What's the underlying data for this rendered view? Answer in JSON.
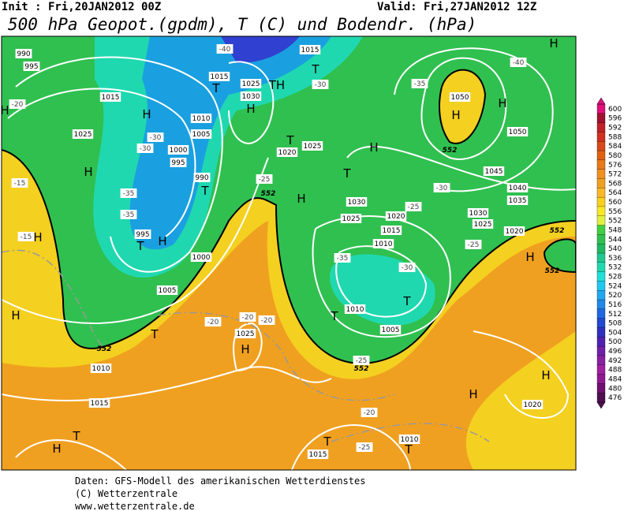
{
  "header": {
    "init": "Init : Fri,20JAN2012 00Z",
    "valid": "Valid: Fri,27JAN2012 12Z",
    "title": "500 hPa Geopot.(gpdm), T (C) und Bodendr. (hPa)"
  },
  "map": {
    "pressure_labels": [
      "990",
      "995",
      "1015",
      "1025",
      "1000",
      "995",
      "990",
      "995",
      "1000",
      "1005",
      "1050",
      "1050",
      "1045",
      "1040",
      "1035",
      "1030",
      "1025",
      "1020",
      "1015",
      "1010",
      "1010",
      "1005",
      "1025",
      "1010",
      "1015",
      "1015",
      "1010",
      "1020",
      "1030",
      "1025",
      "1010",
      "1005",
      "1020",
      "1025",
      "1015",
      "1030",
      "1025",
      "1020",
      "1015"
    ],
    "temperature_labels": [
      "-40",
      "-35",
      "-30",
      "-25",
      "-20",
      "-35",
      "-30",
      "-25",
      "-20",
      "-25",
      "-30",
      "-35",
      "-40",
      "-20",
      "-15",
      "-15",
      "-35",
      "-30",
      "-25",
      "-30",
      "-20",
      "-20",
      "-25"
    ],
    "contour_labels": [
      "552",
      "552",
      "552",
      "552",
      "552",
      "552"
    ],
    "centers": [
      "T",
      "H",
      "T",
      "H",
      "T",
      "H",
      "H",
      "H",
      "H",
      "H",
      "H",
      "H",
      "T",
      "T",
      "H",
      "T",
      "T",
      "H",
      "T",
      "T",
      "H",
      "H",
      "TH",
      "H",
      "T",
      "T",
      "H",
      "H",
      "T",
      "H"
    ]
  },
  "colorbar": {
    "labels": [
      "600",
      "596",
      "592",
      "588",
      "584",
      "580",
      "576",
      "572",
      "568",
      "564",
      "560",
      "556",
      "552",
      "548",
      "544",
      "540",
      "536",
      "532",
      "528",
      "524",
      "520",
      "516",
      "512",
      "508",
      "504",
      "500",
      "496",
      "492",
      "488",
      "484",
      "480",
      "476"
    ]
  },
  "footer": {
    "lines": [
      "Daten: GFS-Modell des amerikanischen Wetterdienstes",
      "(C) Wetterzentrale",
      "www.wetterzentrale.de"
    ]
  }
}
